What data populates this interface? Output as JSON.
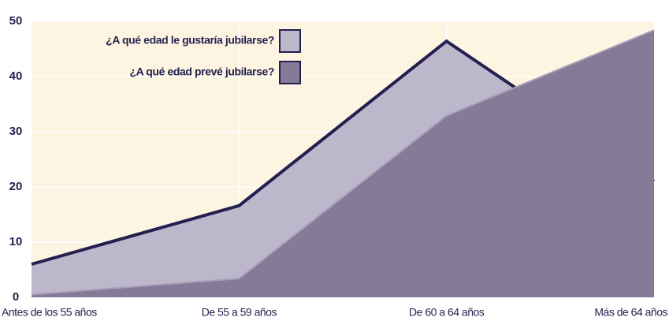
{
  "chart_data": {
    "type": "area",
    "categories": [
      "Antes de los 55 años",
      "De 55 a 59 años",
      "De 60 a 64 años",
      "Más de  64 años"
    ],
    "series": [
      {
        "name": "¿A qué edad le gustaría jubilarse?",
        "color": "#bcb7cb",
        "values": [
          6,
          16.6,
          46.4,
          21
        ]
      },
      {
        "name": "¿A qué edad prevé jubilarse?",
        "color": "#857a98",
        "values": [
          0.5,
          3.4,
          32.9,
          48.4
        ]
      }
    ],
    "ylim": [
      0,
      50
    ],
    "yticks": [
      0,
      10,
      20,
      30,
      40,
      50
    ],
    "grid": true,
    "legend": "upper left"
  }
}
